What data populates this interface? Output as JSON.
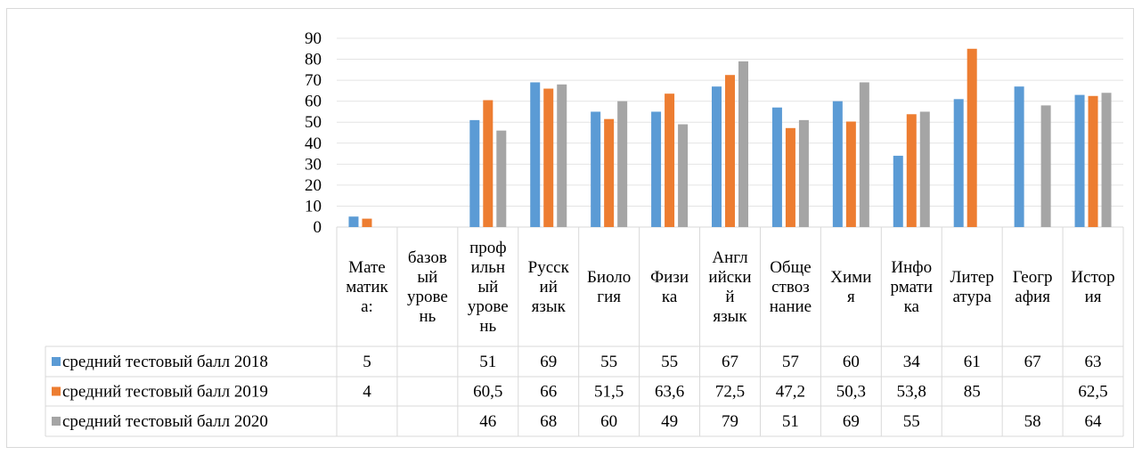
{
  "chart_data": {
    "type": "bar",
    "title": "",
    "xlabel": "",
    "ylabel": "",
    "ylim": [
      0,
      90
    ],
    "yticks": [
      0,
      10,
      20,
      30,
      40,
      50,
      60,
      70,
      80,
      90
    ],
    "grid": true,
    "legend_position": "data-table",
    "categories": [
      [
        "Мате",
        "матик",
        "а:"
      ],
      [
        "базов",
        "ый",
        "урове",
        "нь"
      ],
      [
        "проф",
        "ильн",
        "ый",
        "урове",
        "нь"
      ],
      [
        "Русск",
        "ий",
        "язык"
      ],
      [
        "Биоло",
        "гия"
      ],
      [
        "Физи",
        "ка"
      ],
      [
        "Англ",
        "ийски",
        "й",
        "язык"
      ],
      [
        "Обще",
        "ствоз",
        "нание"
      ],
      [
        "Хими",
        "я"
      ],
      [
        "Инфо",
        "рмати",
        "ка"
      ],
      [
        "Литер",
        "атура"
      ],
      [
        "Геогр",
        "афия"
      ],
      [
        "Истор",
        "ия"
      ]
    ],
    "series": [
      {
        "name": "средний тестовый балл 2018",
        "color": "#5b9bd5",
        "values": [
          5,
          null,
          51,
          69,
          55,
          55,
          67,
          57,
          60,
          34,
          61,
          67,
          63
        ],
        "labels": [
          "5",
          "",
          "51",
          "69",
          "55",
          "55",
          "67",
          "57",
          "60",
          "34",
          "61",
          "67",
          "63"
        ]
      },
      {
        "name": "средний тестовый балл 2019",
        "color": "#ed7d31",
        "values": [
          4,
          null,
          60.5,
          66,
          51.5,
          63.6,
          72.5,
          47.2,
          50.3,
          53.8,
          85,
          null,
          62.5
        ],
        "labels": [
          "4",
          "",
          "60,5",
          "66",
          "51,5",
          "63,6",
          "72,5",
          "47,2",
          "50,3",
          "53,8",
          "85",
          "",
          "62,5"
        ]
      },
      {
        "name": "средний тестовый балл 2020",
        "color": "#a5a5a5",
        "values": [
          null,
          null,
          46,
          68,
          60,
          49,
          79,
          51,
          69,
          55,
          null,
          58,
          64
        ],
        "labels": [
          "",
          "",
          "46",
          "68",
          "60",
          "49",
          "79",
          "51",
          "69",
          "55",
          "",
          "58",
          "64"
        ]
      }
    ]
  }
}
